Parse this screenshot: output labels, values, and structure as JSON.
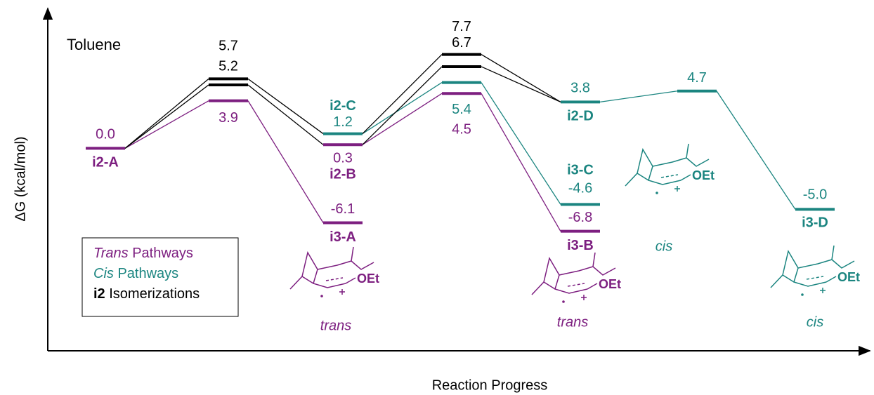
{
  "chart_data": {
    "type": "energy",
    "annotation": "Toluene",
    "xlabel": "Reaction Progress",
    "ylabel": "ΔG (kcal/mol)",
    "ylim": [
      -16.6,
      11.3
    ],
    "series": [
      {
        "name": "Trans Pathways",
        "name_style": "italic",
        "color": "#7d1f80"
      },
      {
        "name": "Cis Pathways",
        "name_style": "italic",
        "color": "#1b8580"
      },
      {
        "name": "i2 Isomerizations",
        "name_style": "bold",
        "color": "#000000"
      }
    ],
    "stages": [
      [
        {
          "name": "i2-A",
          "value": 0.0,
          "value_label": "0.0",
          "color": "#7d1f80"
        }
      ],
      [
        {
          "value": 3.9,
          "color": "#7d1f80"
        },
        {
          "value": 5.2,
          "color": "#000000"
        },
        {
          "value": 5.7,
          "color": "#000000"
        }
      ],
      [
        {
          "name": "i3-A",
          "value": -6.1,
          "color": "#7d1f80"
        },
        {
          "name": "i2-B",
          "value": 0.3,
          "color": "#7d1f80"
        },
        {
          "name": "i2-C",
          "value": 1.2,
          "color": "#1b8580"
        }
      ],
      [
        {
          "value": 4.5,
          "color": "#7d1f80"
        },
        {
          "value": 5.4,
          "color": "#1b8580"
        },
        {
          "value": 6.7,
          "color": "#000000"
        },
        {
          "value": 7.7,
          "color": "#000000"
        }
      ],
      [
        {
          "name": "i2-D",
          "value": 3.8,
          "color": "#1b8580"
        },
        {
          "name": "i3-C",
          "value": -4.6,
          "color": "#1b8580"
        },
        {
          "name": "i3-B",
          "value": -6.8,
          "color": "#7d1f80"
        }
      ],
      [
        {
          "value": 4.7,
          "color": "#1b8580"
        }
      ],
      [
        {
          "name": "i3-D",
          "value": -5.0,
          "value_label": "-5.0",
          "color": "#1b8580"
        }
      ]
    ],
    "links": [
      {
        "from": "0.0",
        "to": "1.0",
        "color": "#7d1f80"
      },
      {
        "from": "1.0",
        "to": "2.0",
        "color": "#7d1f80"
      },
      {
        "from": "0.0",
        "to": "1.1",
        "color": "#000000"
      },
      {
        "from": "0.0",
        "to": "1.2",
        "color": "#000000"
      },
      {
        "from": "1.1",
        "to": "2.1",
        "color": "#000000"
      },
      {
        "from": "1.2",
        "to": "2.2",
        "color": "#000000"
      },
      {
        "from": "2.1",
        "to": "3.0",
        "color": "#7d1f80"
      },
      {
        "from": "3.0",
        "to": "4.2",
        "color": "#7d1f80"
      },
      {
        "from": "2.2",
        "to": "3.1",
        "color": "#1b8580"
      },
      {
        "from": "3.1",
        "to": "4.1",
        "color": "#1b8580"
      },
      {
        "from": "2.1",
        "to": "3.2",
        "color": "#000000"
      },
      {
        "from": "2.2",
        "to": "3.3",
        "color": "#000000"
      },
      {
        "from": "3.2",
        "to": "4.0",
        "color": "#000000"
      },
      {
        "from": "3.3",
        "to": "4.0",
        "color": "#000000"
      },
      {
        "from": "4.0",
        "to": "5.0",
        "color": "#1b8580"
      },
      {
        "from": "5.0",
        "to": "6.0",
        "color": "#1b8580"
      }
    ],
    "structures": [
      {
        "label": "trans",
        "substituent": "OEt",
        "color": "#7d1f80"
      },
      {
        "label": "trans",
        "substituent": "OEt",
        "color": "#7d1f80"
      },
      {
        "label": "cis",
        "substituent": "OEt",
        "color": "#1b8580"
      },
      {
        "label": "cis",
        "substituent": "OEt",
        "color": "#1b8580"
      }
    ]
  }
}
